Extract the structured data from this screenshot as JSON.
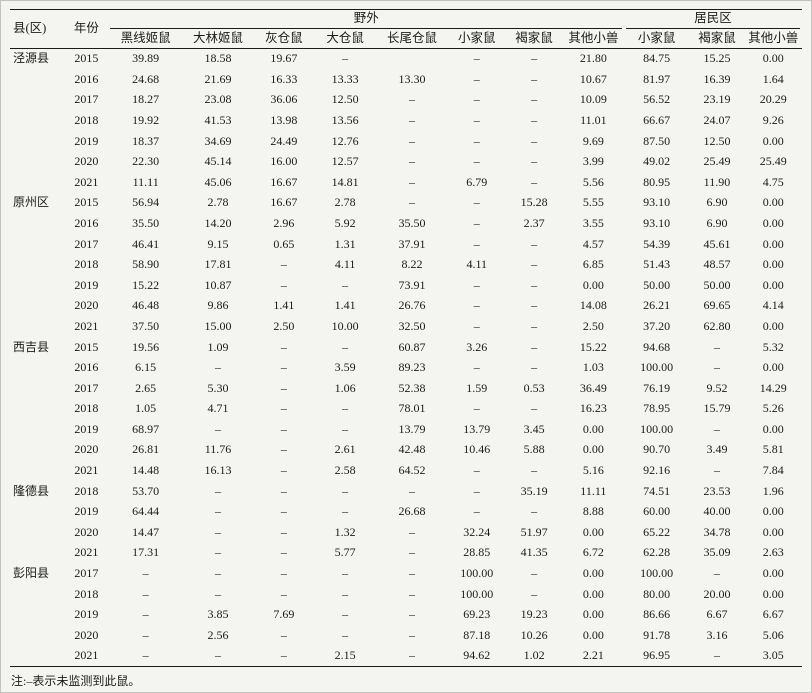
{
  "page": {
    "footnote": "注:–表示未监测到此鼠。"
  },
  "table": {
    "headers": {
      "county": "县(区)",
      "year": "年份",
      "outdoor_group": "野外",
      "residential_group": "居民区",
      "outdoor_cols": [
        "黑线姬鼠",
        "大林姬鼠",
        "灰仓鼠",
        "大仓鼠",
        "长尾仓鼠",
        "小家鼠",
        "褐家鼠",
        "其他小兽"
      ],
      "residential_cols": [
        "小家鼠",
        "褐家鼠",
        "其他小兽"
      ]
    },
    "rows": [
      {
        "county": "泾源县",
        "year": "2015",
        "values": [
          "39.89",
          "18.58",
          "19.67",
          "–",
          "",
          "–",
          "–",
          "21.80",
          "84.75",
          "15.25",
          "0.00"
        ]
      },
      {
        "county": "",
        "year": "2016",
        "values": [
          "24.68",
          "21.69",
          "16.33",
          "13.33",
          "13.30",
          "–",
          "–",
          "10.67",
          "81.97",
          "16.39",
          "1.64"
        ]
      },
      {
        "county": "",
        "year": "2017",
        "values": [
          "18.27",
          "23.08",
          "36.06",
          "12.50",
          "–",
          "–",
          "–",
          "10.09",
          "56.52",
          "23.19",
          "20.29"
        ]
      },
      {
        "county": "",
        "year": "2018",
        "values": [
          "19.92",
          "41.53",
          "13.98",
          "13.56",
          "–",
          "–",
          "–",
          "11.01",
          "66.67",
          "24.07",
          "9.26"
        ]
      },
      {
        "county": "",
        "year": "2019",
        "values": [
          "18.37",
          "34.69",
          "24.49",
          "12.76",
          "–",
          "–",
          "–",
          "9.69",
          "87.50",
          "12.50",
          "0.00"
        ]
      },
      {
        "county": "",
        "year": "2020",
        "values": [
          "22.30",
          "45.14",
          "16.00",
          "12.57",
          "–",
          "–",
          "–",
          "3.99",
          "49.02",
          "25.49",
          "25.49"
        ]
      },
      {
        "county": "",
        "year": "2021",
        "values": [
          "11.11",
          "45.06",
          "16.67",
          "14.81",
          "–",
          "6.79",
          "–",
          "5.56",
          "80.95",
          "11.90",
          "4.75"
        ]
      },
      {
        "county": "原州区",
        "year": "2015",
        "values": [
          "56.94",
          "2.78",
          "16.67",
          "2.78",
          "–",
          "–",
          "15.28",
          "5.55",
          "93.10",
          "6.90",
          "0.00"
        ]
      },
      {
        "county": "",
        "year": "2016",
        "values": [
          "35.50",
          "14.20",
          "2.96",
          "5.92",
          "35.50",
          "–",
          "2.37",
          "3.55",
          "93.10",
          "6.90",
          "0.00"
        ]
      },
      {
        "county": "",
        "year": "2017",
        "values": [
          "46.41",
          "9.15",
          "0.65",
          "1.31",
          "37.91",
          "–",
          "–",
          "4.57",
          "54.39",
          "45.61",
          "0.00"
        ]
      },
      {
        "county": "",
        "year": "2018",
        "values": [
          "58.90",
          "17.81",
          "–",
          "4.11",
          "8.22",
          "4.11",
          "–",
          "6.85",
          "51.43",
          "48.57",
          "0.00"
        ]
      },
      {
        "county": "",
        "year": "2019",
        "values": [
          "15.22",
          "10.87",
          "–",
          "–",
          "73.91",
          "–",
          "–",
          "0.00",
          "50.00",
          "50.00",
          "0.00"
        ]
      },
      {
        "county": "",
        "year": "2020",
        "values": [
          "46.48",
          "9.86",
          "1.41",
          "1.41",
          "26.76",
          "–",
          "–",
          "14.08",
          "26.21",
          "69.65",
          "4.14"
        ]
      },
      {
        "county": "",
        "year": "2021",
        "values": [
          "37.50",
          "15.00",
          "2.50",
          "10.00",
          "32.50",
          "–",
          "–",
          "2.50",
          "37.20",
          "62.80",
          "0.00"
        ]
      },
      {
        "county": "西吉县",
        "year": "2015",
        "values": [
          "19.56",
          "1.09",
          "–",
          "–",
          "60.87",
          "3.26",
          "–",
          "15.22",
          "94.68",
          "–",
          "5.32"
        ]
      },
      {
        "county": "",
        "year": "2016",
        "values": [
          "6.15",
          "–",
          "–",
          "3.59",
          "89.23",
          "–",
          "–",
          "1.03",
          "100.00",
          "–",
          "0.00"
        ]
      },
      {
        "county": "",
        "year": "2017",
        "values": [
          "2.65",
          "5.30",
          "–",
          "1.06",
          "52.38",
          "1.59",
          "0.53",
          "36.49",
          "76.19",
          "9.52",
          "14.29"
        ]
      },
      {
        "county": "",
        "year": "2018",
        "values": [
          "1.05",
          "4.71",
          "–",
          "–",
          "78.01",
          "–",
          "–",
          "16.23",
          "78.95",
          "15.79",
          "5.26"
        ]
      },
      {
        "county": "",
        "year": "2019",
        "values": [
          "68.97",
          "–",
          "–",
          "–",
          "13.79",
          "13.79",
          "3.45",
          "0.00",
          "100.00",
          "–",
          "0.00"
        ]
      },
      {
        "county": "",
        "year": "2020",
        "values": [
          "26.81",
          "11.76",
          "–",
          "2.61",
          "42.48",
          "10.46",
          "5.88",
          "0.00",
          "90.70",
          "3.49",
          "5.81"
        ]
      },
      {
        "county": "",
        "year": "2021",
        "values": [
          "14.48",
          "16.13",
          "–",
          "2.58",
          "64.52",
          "–",
          "–",
          "5.16",
          "92.16",
          "–",
          "7.84"
        ]
      },
      {
        "county": "隆德县",
        "year": "2018",
        "values": [
          "53.70",
          "–",
          "–",
          "–",
          "–",
          "–",
          "35.19",
          "11.11",
          "74.51",
          "23.53",
          "1.96"
        ]
      },
      {
        "county": "",
        "year": "2019",
        "values": [
          "64.44",
          "–",
          "–",
          "–",
          "26.68",
          "–",
          "–",
          "8.88",
          "60.00",
          "40.00",
          "0.00"
        ]
      },
      {
        "county": "",
        "year": "2020",
        "values": [
          "14.47",
          "–",
          "–",
          "1.32",
          "–",
          "32.24",
          "51.97",
          "0.00",
          "65.22",
          "34.78",
          "0.00"
        ]
      },
      {
        "county": "",
        "year": "2021",
        "values": [
          "17.31",
          "–",
          "–",
          "5.77",
          "–",
          "28.85",
          "41.35",
          "6.72",
          "62.28",
          "35.09",
          "2.63"
        ]
      },
      {
        "county": "彭阳县",
        "year": "2017",
        "values": [
          "–",
          "–",
          "–",
          "–",
          "–",
          "100.00",
          "–",
          "0.00",
          "100.00",
          "–",
          "0.00"
        ]
      },
      {
        "county": "",
        "year": "2018",
        "values": [
          "–",
          "–",
          "–",
          "–",
          "–",
          "100.00",
          "–",
          "0.00",
          "80.00",
          "20.00",
          "0.00"
        ]
      },
      {
        "county": "",
        "year": "2019",
        "values": [
          "–",
          "3.85",
          "7.69",
          "–",
          "–",
          "69.23",
          "19.23",
          "0.00",
          "86.66",
          "6.67",
          "6.67"
        ]
      },
      {
        "county": "",
        "year": "2020",
        "values": [
          "–",
          "2.56",
          "–",
          "–",
          "–",
          "87.18",
          "10.26",
          "0.00",
          "91.78",
          "3.16",
          "5.06"
        ]
      },
      {
        "county": "",
        "year": "2021",
        "values": [
          "–",
          "–",
          "–",
          "2.15",
          "–",
          "94.62",
          "1.02",
          "2.21",
          "96.95",
          "–",
          "3.05"
        ]
      }
    ]
  }
}
